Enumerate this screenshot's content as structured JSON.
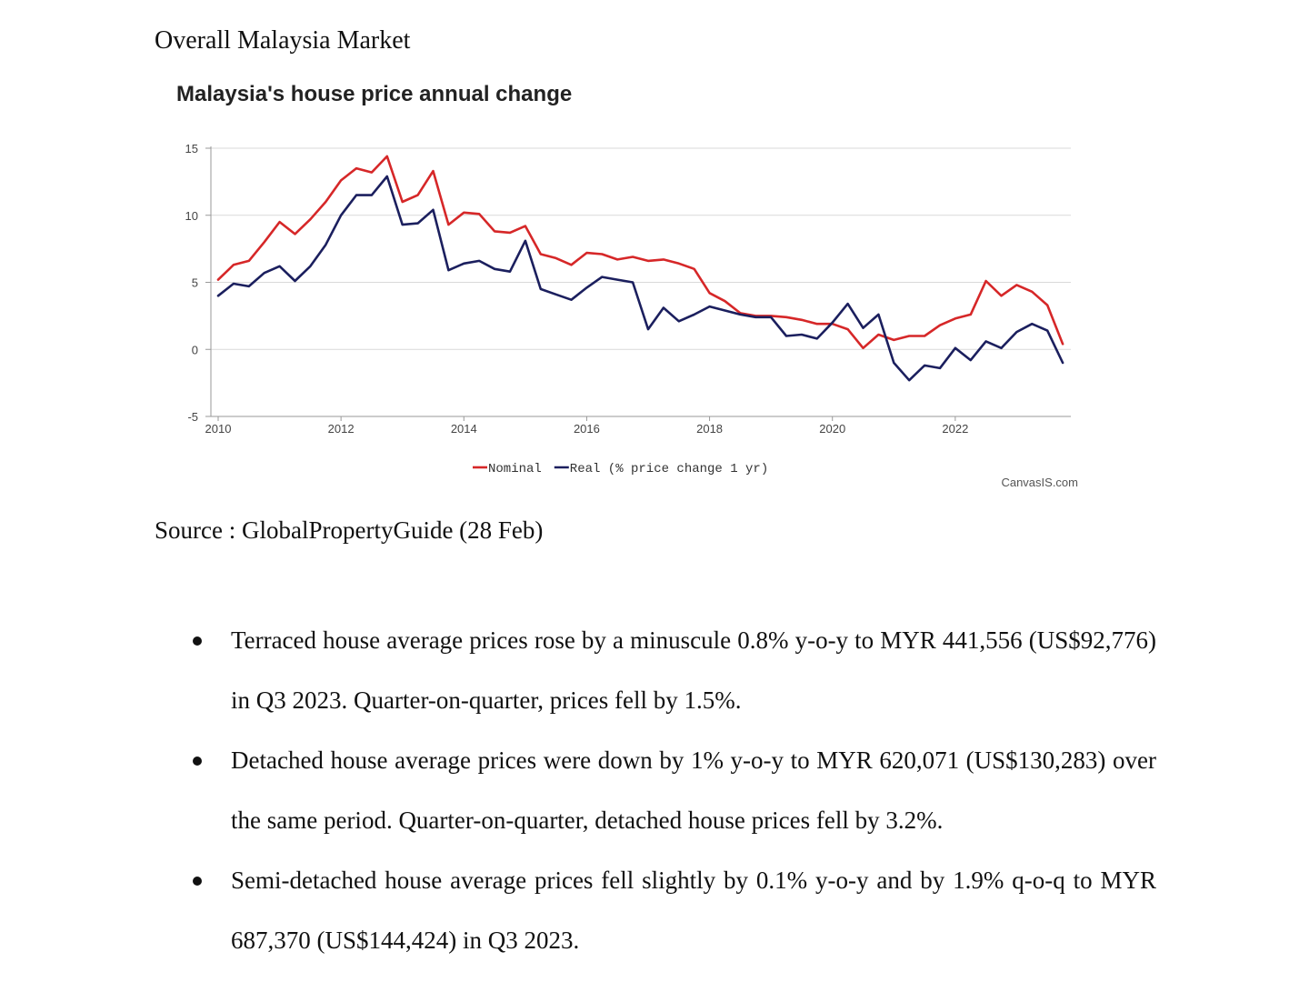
{
  "document": {
    "heading": "Overall Malaysia Market",
    "source": "Source : GlobalPropertyGuide (28 Feb)",
    "bullets": [
      "Terraced house average prices rose by a minuscule 0.8% y-o-y to MYR 441,556 (US$92,776) in Q3 2023. Quarter-on-quarter, prices fell by 1.5%.",
      "Detached house average prices were down by 1% y-o-y to MYR 620,071 (US$130,283) over the same period. Quarter-on-quarter, detached house prices fell by 3.2%.",
      "Semi-detached house average prices fell slightly by 0.1% y-o-y and by 1.9% q-o-q to MYR 687,370 (US$144,424) in Q3 2023."
    ]
  },
  "chart_data": {
    "type": "line",
    "title": "Malaysia's house price annual change",
    "watermark": "CanvasIS.com",
    "legend_position": "bottom-center",
    "grid": true,
    "xlim": [
      2010,
      2024.0
    ],
    "ylim": [
      -5,
      15
    ],
    "x_ticks": [
      2010,
      2012,
      2014,
      2016,
      2018,
      2020,
      2022
    ],
    "y_ticks": [
      -5,
      0,
      5,
      10,
      15
    ],
    "colors": {
      "nominal": "#d62728",
      "real": "#1b1f5e",
      "grid": "#d9d9d9",
      "axis": "#999999"
    },
    "x": [
      2010.0,
      2010.25,
      2010.5,
      2010.75,
      2011.0,
      2011.25,
      2011.5,
      2011.75,
      2012.0,
      2012.25,
      2012.5,
      2012.75,
      2013.0,
      2013.25,
      2013.5,
      2013.75,
      2014.0,
      2014.25,
      2014.5,
      2014.75,
      2015.0,
      2015.25,
      2015.5,
      2015.75,
      2016.0,
      2016.25,
      2016.5,
      2016.75,
      2017.0,
      2017.25,
      2017.5,
      2017.75,
      2018.0,
      2018.25,
      2018.5,
      2018.75,
      2019.0,
      2019.25,
      2019.5,
      2019.75,
      2020.0,
      2020.25,
      2020.5,
      2020.75,
      2021.0,
      2021.25,
      2021.5,
      2021.75,
      2022.0,
      2022.25,
      2022.5,
      2022.75,
      2023.0,
      2023.25,
      2023.5,
      2023.75
    ],
    "series": [
      {
        "name": "Nominal",
        "values": [
          5.2,
          6.3,
          6.6,
          8.0,
          9.5,
          8.6,
          9.7,
          11.0,
          12.6,
          13.5,
          13.2,
          14.4,
          11.0,
          11.5,
          13.3,
          9.3,
          10.2,
          10.1,
          8.8,
          8.7,
          9.2,
          7.1,
          6.8,
          6.3,
          7.2,
          7.1,
          6.7,
          6.9,
          6.6,
          6.7,
          6.4,
          6.0,
          4.2,
          3.6,
          2.7,
          2.5,
          2.5,
          2.4,
          2.2,
          1.9,
          1.9,
          1.5,
          0.1,
          1.1,
          0.7,
          1.0,
          1.0,
          1.8,
          2.3,
          2.6,
          5.1,
          4.0,
          4.8,
          4.3,
          3.3,
          0.4
        ]
      },
      {
        "name": "Real (% price change 1 yr)",
        "values": [
          4.0,
          4.9,
          4.7,
          5.7,
          6.2,
          5.1,
          6.2,
          7.8,
          10.0,
          11.5,
          11.5,
          12.9,
          9.3,
          9.4,
          10.4,
          5.9,
          6.4,
          6.6,
          6.0,
          5.8,
          8.1,
          4.5,
          4.1,
          3.7,
          4.6,
          5.4,
          5.2,
          5.0,
          1.5,
          3.1,
          2.1,
          2.6,
          3.2,
          2.9,
          2.6,
          2.4,
          2.4,
          1.0,
          1.1,
          0.8,
          2.0,
          3.4,
          1.6,
          2.6,
          -1.0,
          -2.3,
          -1.2,
          -1.4,
          0.1,
          -0.8,
          0.6,
          0.1,
          1.3,
          1.9,
          1.4,
          -1.0
        ]
      }
    ]
  }
}
